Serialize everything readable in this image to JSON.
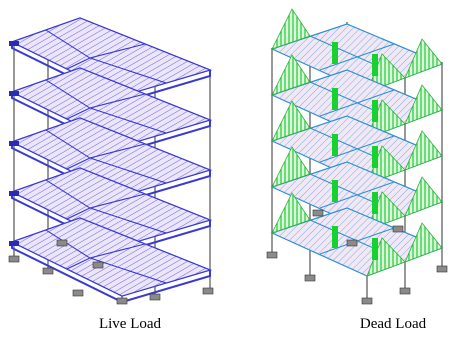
{
  "captions": {
    "left": "Live Load",
    "right": "Dead Load"
  }
}
